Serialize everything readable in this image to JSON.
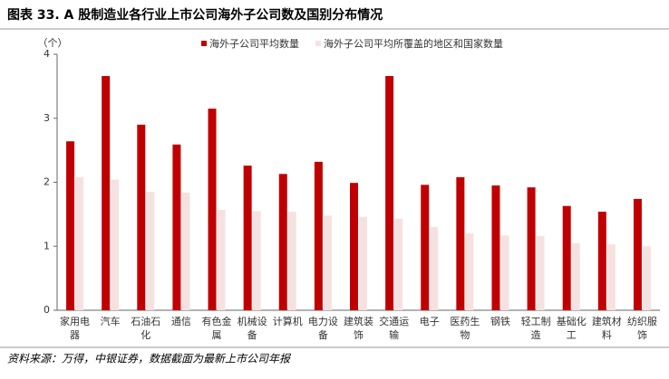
{
  "chart_data": {
    "type": "bar",
    "title": "图表 33. A 股制造业各行业上市公司海外子公司数及国别分布情况",
    "y_label": "（个）",
    "source": "资料来源：万得，中银证券，数据截面为最新上市公司年报",
    "categories": [
      "家用电器",
      "汽车",
      "石油石化",
      "通信",
      "有色金属",
      "机械设备",
      "计算机",
      "电力设备",
      "建筑装饰",
      "交通运输",
      "电子",
      "医药生物",
      "钢铁",
      "轻工制造",
      "基础化工",
      "建筑材料",
      "纺织服饰"
    ],
    "series": [
      {
        "name": "海外子公司平均数量",
        "color": "#c00000",
        "values": [
          2.64,
          3.66,
          2.9,
          2.59,
          3.15,
          2.26,
          2.13,
          2.32,
          1.99,
          3.66,
          1.96,
          2.08,
          1.95,
          1.92,
          1.63,
          1.54,
          1.74
        ]
      },
      {
        "name": "海外子公司平均所覆盖的地区和国家数量",
        "color": "#f6e1e1",
        "values": [
          2.08,
          2.04,
          1.85,
          1.84,
          1.57,
          1.55,
          1.54,
          1.48,
          1.46,
          1.43,
          1.3,
          1.2,
          1.17,
          1.16,
          1.05,
          1.03,
          1.0
        ]
      }
    ],
    "ylim": [
      0,
      4
    ],
    "yticks": [
      0,
      1,
      2,
      3,
      4
    ],
    "grid": false
  }
}
